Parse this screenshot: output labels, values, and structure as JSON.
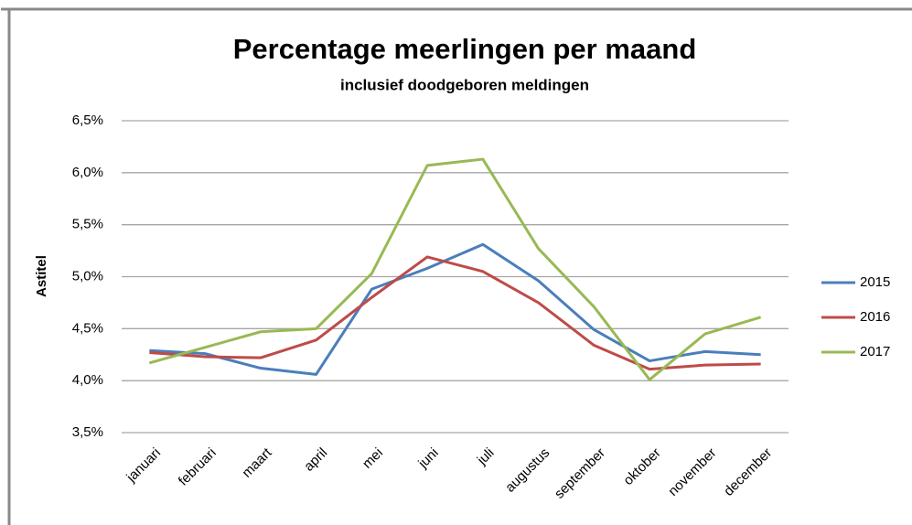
{
  "chart_data": {
    "type": "line",
    "title": "Percentage meerlingen per maand",
    "subtitle": "inclusief doodgeboren meldingen",
    "y_label": "Astitel",
    "categories": [
      "januari",
      "februari",
      "maart",
      "april",
      "mei",
      "juni",
      "juli",
      "augustus",
      "september",
      "oktober",
      "november",
      "december"
    ],
    "series": [
      {
        "name": "2015",
        "color": "#4a7ebb",
        "values": [
          4.29,
          4.26,
          4.12,
          4.06,
          4.88,
          5.08,
          5.31,
          4.96,
          4.49,
          4.19,
          4.28,
          4.25
        ]
      },
      {
        "name": "2016",
        "color": "#be4b48",
        "values": [
          4.27,
          4.23,
          4.22,
          4.39,
          4.8,
          5.19,
          5.05,
          4.75,
          4.34,
          4.11,
          4.15,
          4.16
        ]
      },
      {
        "name": "2017",
        "color": "#98b954",
        "values": [
          4.17,
          4.32,
          4.47,
          4.5,
          5.03,
          6.07,
          6.13,
          5.27,
          4.71,
          4.01,
          4.45,
          4.61
        ]
      }
    ],
    "ylim": [
      3.5,
      6.5
    ],
    "yticks": [
      {
        "value": 3.5,
        "label": "3,5%"
      },
      {
        "value": 4.0,
        "label": "4,0%"
      },
      {
        "value": 4.5,
        "label": "4,5%"
      },
      {
        "value": 5.0,
        "label": "5,0%"
      },
      {
        "value": 5.5,
        "label": "5,5%"
      },
      {
        "value": 6.0,
        "label": "6,0%"
      },
      {
        "value": 6.5,
        "label": "6,5%"
      }
    ],
    "grid": true,
    "legend": "right"
  }
}
